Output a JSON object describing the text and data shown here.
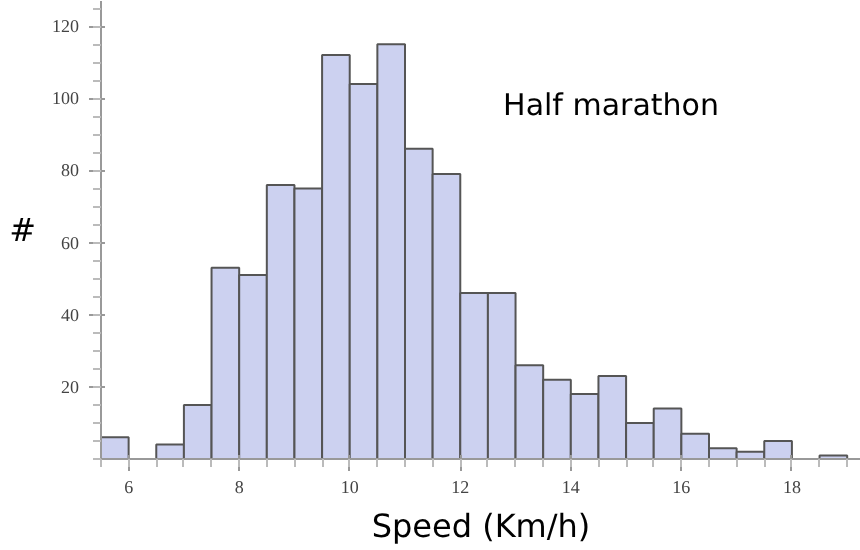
{
  "chart_data": {
    "type": "histogram",
    "title": "Half marathon",
    "xlabel": "Speed (Km/h)",
    "ylabel": "#",
    "bins": [
      5.5,
      6,
      6.5,
      7,
      7.5,
      8,
      8.5,
      9,
      9.5,
      10,
      10.5,
      11,
      11.5,
      12,
      12.5,
      13,
      13.5,
      14,
      14.5,
      15,
      15.5,
      16,
      16.5,
      17,
      17.5,
      18,
      18.5,
      19
    ],
    "values": [
      6,
      0,
      4,
      15,
      53,
      51,
      76,
      75,
      112,
      104,
      115,
      86,
      79,
      46,
      46,
      26,
      22,
      18,
      23,
      10,
      14,
      7,
      3,
      2,
      5,
      0,
      1
    ],
    "color": "#ccd1f0",
    "xlim": [
      5.5,
      19.25
    ],
    "ylim": [
      0,
      127
    ],
    "xticks": [
      6,
      8,
      10,
      12,
      14,
      16,
      18
    ],
    "yticks": [
      20,
      40,
      60,
      80,
      100,
      120
    ],
    "grid": false
  }
}
